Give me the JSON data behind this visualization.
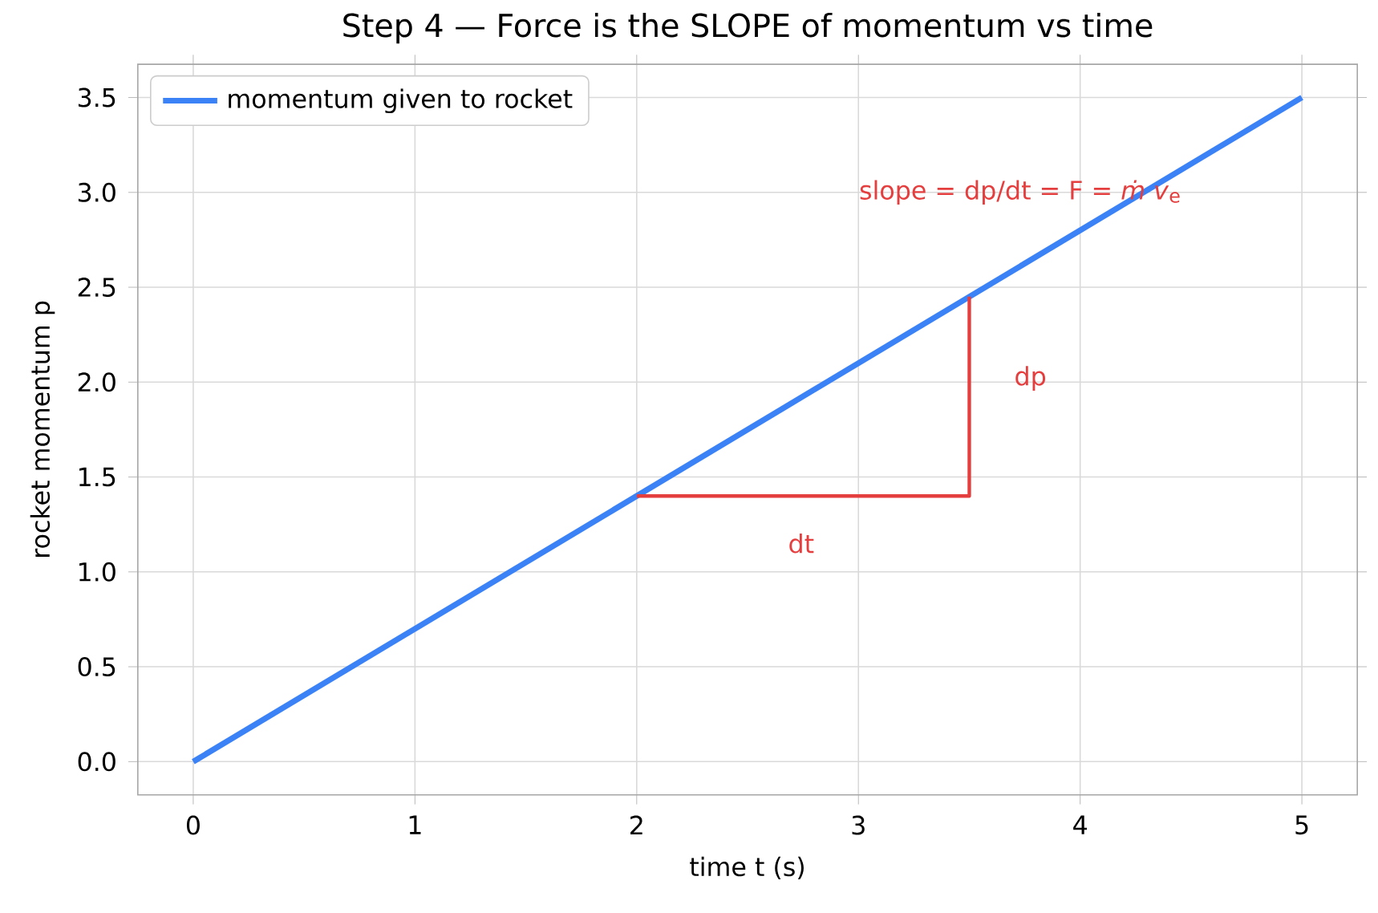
{
  "chart_data": {
    "type": "line",
    "title": "Step 4 — Force is the SLOPE of momentum vs time",
    "xlabel": "time  t  (s)",
    "ylabel": "rocket momentum  p",
    "series": [
      {
        "name": "momentum given to rocket",
        "color": "#3b82f6",
        "x": [
          0,
          5
        ],
        "values": [
          0,
          3.5
        ]
      },
      {
        "color": "#e53e3e",
        "x": [
          2,
          3.5,
          3.5
        ],
        "values": [
          1.4,
          1.4,
          2.45
        ]
      }
    ],
    "annotations": [
      "slope = dp/dt = F = *ṁ v*$_{e}$",
      "dt",
      "dp"
    ],
    "xlim": [
      -0.25,
      5.25
    ],
    "ylim": [
      -0.175,
      3.675
    ],
    "xticks": [
      0,
      1,
      2,
      3,
      4,
      5
    ],
    "yticks": [
      {
        "value": 0,
        "label": "0.0"
      },
      0.5,
      {
        "value": 1,
        "label": "1.0"
      },
      1.5,
      {
        "value": 2,
        "label": "2.0"
      },
      2.5,
      {
        "value": 3,
        "label": "3.0"
      },
      3.5
    ],
    "grid": true,
    "legend": "top left"
  }
}
